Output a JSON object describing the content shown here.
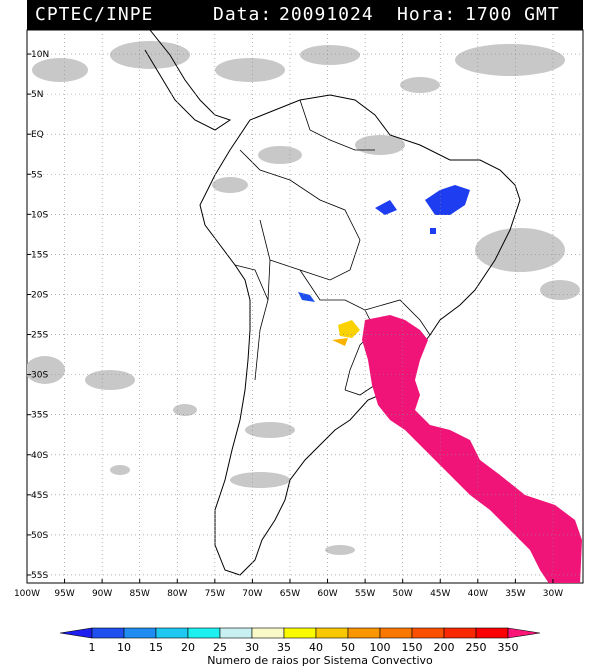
{
  "header": {
    "source": "CPTEC/INPE",
    "date_label": "Data:",
    "date": "20091024",
    "hour_label": "Hora:",
    "hour": "1700 GMT"
  },
  "map": {
    "lat_labels": [
      "10N",
      "5N",
      "EQ",
      "5S",
      "10S",
      "15S",
      "20S",
      "25S",
      "30S",
      "35S",
      "40S",
      "45S",
      "50S",
      "55S"
    ],
    "lon_labels": [
      "100W",
      "95W",
      "90W",
      "85W",
      "80W",
      "75W",
      "70W",
      "65W",
      "60W",
      "55W",
      "50W",
      "45W",
      "40W",
      "35W",
      "30W"
    ],
    "lat_range": [
      -56,
      13
    ],
    "lon_range": [
      -100,
      -26
    ],
    "cloud_color": "#c8c8c8",
    "grid": "dotted"
  },
  "colorbar": {
    "values": [
      "1",
      "10",
      "15",
      "20",
      "25",
      "30",
      "35",
      "40",
      "50",
      "100",
      "150",
      "200",
      "250",
      "350"
    ],
    "colors": [
      "#1e1ef0",
      "#1e50f0",
      "#1e8cf0",
      "#1ec8f0",
      "#1ef0f0",
      "#c8f0f0",
      "#fafac8",
      "#fafa00",
      "#fac800",
      "#fa9600",
      "#fa7800",
      "#fa5000",
      "#fa2800",
      "#fa0000",
      "#fa1478"
    ],
    "caption": "Numero de raios por Sistema Convectivo"
  }
}
